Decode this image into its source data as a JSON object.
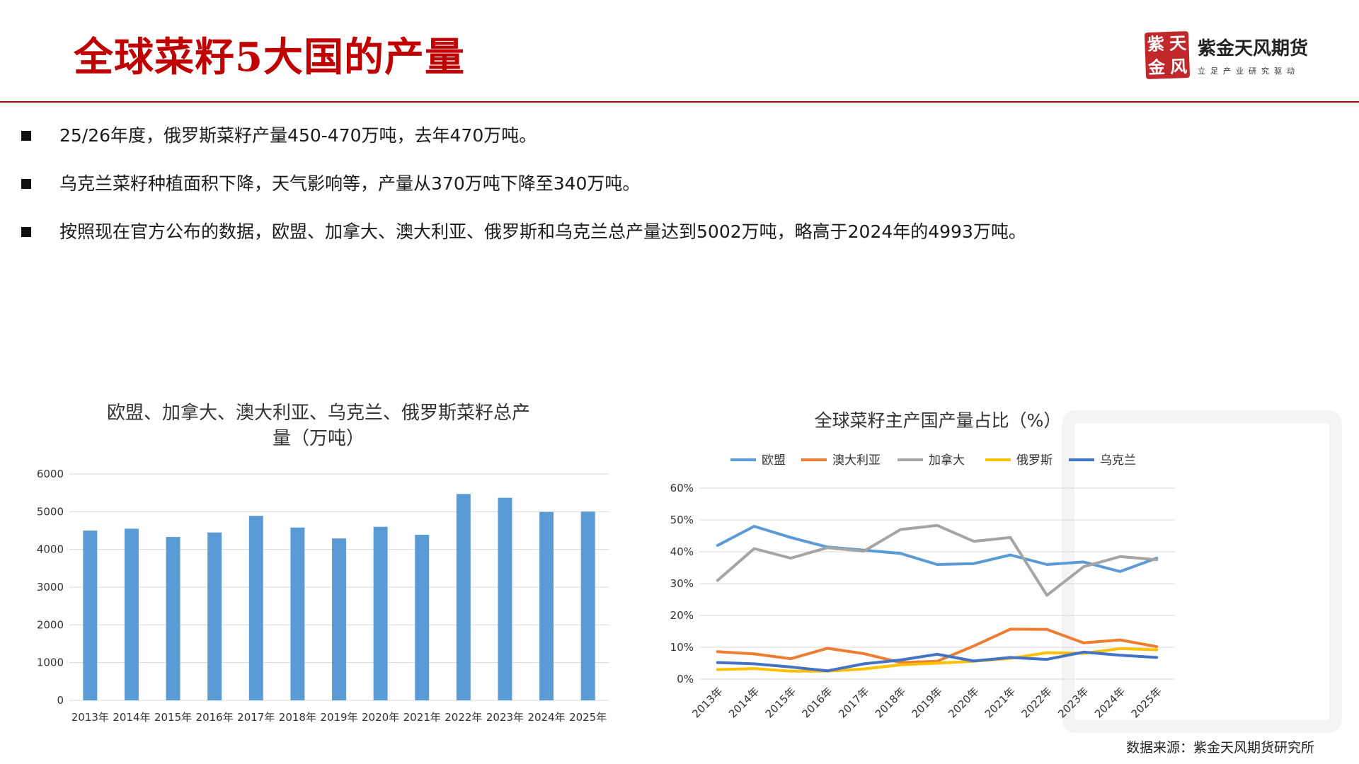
{
  "header": {
    "title": "全球菜籽5大国的产量",
    "company": "紫金天风期货",
    "slogan": "立足产业研究驱动",
    "seal_chars": [
      "紫",
      "天",
      "金",
      "风"
    ]
  },
  "bullets": [
    "25/26年度，俄罗斯菜籽产量450-470万吨，去年470万吨。",
    "乌克兰菜籽种植面积下降，天气影响等，产量从370万吨下降至340万吨。",
    "按照现在官方公布的数据，欧盟、加拿大、澳大利亚、俄罗斯和乌克兰总产量达到5002万吨，略高于2024年的4993万吨。"
  ],
  "source": "数据来源：紫金天风期货研究所",
  "colors": {
    "accent": "#c00000",
    "bar": "#5b9bd5",
    "eu": "#5b9bd5",
    "au": "#ed7d31",
    "ca": "#a5a5a5",
    "ru": "#ffc000",
    "ua": "#4472c4"
  },
  "chart_data": [
    {
      "type": "bar",
      "title_lines": [
        "欧盟、加拿大、澳大利亚、乌克兰、俄罗斯菜籽总产",
        "量（万吨）"
      ],
      "categories": [
        "2013年",
        "2014年",
        "2015年",
        "2016年",
        "2017年",
        "2018年",
        "2019年",
        "2020年",
        "2021年",
        "2022年",
        "2023年",
        "2024年",
        "2025年"
      ],
      "values": [
        4500,
        4550,
        4330,
        4450,
        4890,
        4580,
        4290,
        4600,
        4390,
        5470,
        5370,
        4993,
        5002
      ],
      "ylim": [
        0,
        6000
      ],
      "yticks": [
        "0",
        "1000",
        "2000",
        "3000",
        "4000",
        "5000",
        "6000"
      ],
      "grid": true,
      "legend": "none"
    },
    {
      "type": "line",
      "title": "全球菜籽主产国产量占比（%）",
      "categories": [
        "2013年",
        "2014年",
        "2015年",
        "2016年",
        "2017年",
        "2018年",
        "2019年",
        "2020年",
        "2021年",
        "2022年",
        "2023年",
        "2024年",
        "2025年"
      ],
      "series": [
        {
          "name": "欧盟",
          "values": [
            42,
            48,
            44.5,
            41.5,
            40.5,
            39.5,
            36,
            36.3,
            39,
            36,
            36.8,
            33.8,
            38
          ]
        },
        {
          "name": "澳大利亚",
          "values": [
            8.6,
            7.9,
            6.4,
            9.7,
            8,
            5.2,
            5.6,
            10.4,
            15.7,
            15.6,
            11.4,
            12.3,
            10.2
          ]
        },
        {
          "name": "加拿大",
          "values": [
            31,
            41,
            38,
            41.3,
            40.2,
            47,
            48.3,
            43.3,
            44.5,
            26.3,
            35.3,
            38.5,
            37.5
          ]
        },
        {
          "name": "俄罗斯",
          "values": [
            3,
            3.3,
            2.5,
            2.5,
            3.2,
            4.5,
            5,
            5.6,
            6.5,
            8.3,
            8.1,
            9.6,
            9.2
          ]
        },
        {
          "name": "乌克兰",
          "values": [
            5.2,
            4.8,
            3.8,
            2.6,
            4.8,
            6,
            7.8,
            5.7,
            6.8,
            6.2,
            8.5,
            7.5,
            6.8
          ]
        }
      ],
      "ylim": [
        0,
        60
      ],
      "yticks": [
        "0%",
        "10%",
        "20%",
        "30%",
        "40%",
        "50%",
        "60%"
      ],
      "grid": true,
      "legend": "top"
    }
  ]
}
